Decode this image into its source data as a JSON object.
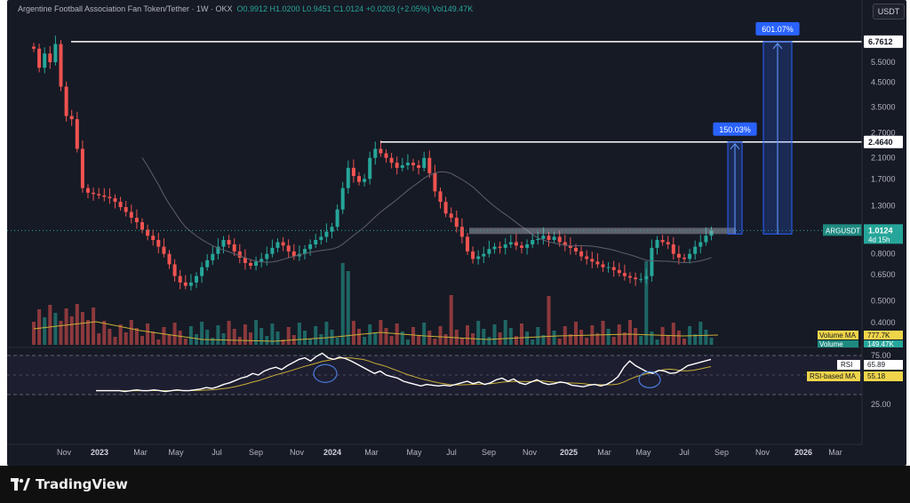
{
  "header": {
    "symbol": "Argentine Football Association Fan Token/Tether",
    "interval": "1W",
    "exchange": "OKX",
    "open": "O0.9912",
    "high": "H1.0200",
    "low": "L0.9451",
    "close": "C1.0124",
    "change": "+0.0203 (+2.05%)",
    "volume": "Vol149.47K"
  },
  "currency_button": "USDT",
  "footer": {
    "brand": "TradingView"
  },
  "chart_data": {
    "type": "candlestick",
    "scale": "log",
    "price_axis_ticks": [
      5.5,
      4.5,
      3.5,
      2.7,
      2.1,
      1.7,
      1.3,
      0.8,
      0.65,
      0.5,
      0.4
    ],
    "time_axis_labels": [
      "Nov",
      "2023",
      "Mar",
      "May",
      "Jul",
      "Sep",
      "Nov",
      "2024",
      "Mar",
      "May",
      "Jul",
      "Sep",
      "Nov",
      "2025",
      "Mar",
      "May",
      "Jul",
      "Sep",
      "Nov",
      "2026",
      "Mar"
    ],
    "price_labels": {
      "top_level": "6.7612",
      "mid_level": "2.4640",
      "last_symbol": "ARGUSDT",
      "last_price": "1.0124",
      "countdown": "4d 15h"
    },
    "target_labels": {
      "first": "150.03%",
      "second": "601.07%"
    },
    "volume": {
      "ma_label": "Volume MA",
      "ma_value": "777.7K",
      "label": "Volume",
      "value": "149.47K"
    },
    "rsi": {
      "levels": [
        "75.00",
        "25.00"
      ],
      "label": "RSI",
      "value": "65.89",
      "ma_label": "RSI-based MA",
      "ma_value": "55.18"
    },
    "closes": [
      6.3,
      5.2,
      6.0,
      5.5,
      6.6,
      4.3,
      3.2,
      3.1,
      2.3,
      1.55,
      1.48,
      1.46,
      1.44,
      1.42,
      1.4,
      1.35,
      1.28,
      1.22,
      1.15,
      1.1,
      1.02,
      0.96,
      0.92,
      0.86,
      0.8,
      0.72,
      0.64,
      0.6,
      0.58,
      0.6,
      0.64,
      0.7,
      0.75,
      0.8,
      0.86,
      0.92,
      0.88,
      0.82,
      0.77,
      0.73,
      0.71,
      0.74,
      0.76,
      0.8,
      0.85,
      0.9,
      0.87,
      0.82,
      0.78,
      0.8,
      0.84,
      0.88,
      0.92,
      0.95,
      1.0,
      1.05,
      1.25,
      1.55,
      1.9,
      1.75,
      1.65,
      1.7,
      2.1,
      2.3,
      2.2,
      2.1,
      2.0,
      1.9,
      1.95,
      2.0,
      1.95,
      1.9,
      2.1,
      1.8,
      1.5,
      1.35,
      1.2,
      1.15,
      1.05,
      0.95,
      0.82,
      0.76,
      0.78,
      0.8,
      0.84,
      0.86,
      0.85,
      0.88,
      0.9,
      0.87,
      0.85,
      0.88,
      0.92,
      0.93,
      0.96,
      0.92,
      0.95,
      0.9,
      0.87,
      0.85,
      0.82,
      0.78,
      0.76,
      0.74,
      0.72,
      0.7,
      0.7,
      0.68,
      0.66,
      0.64,
      0.63,
      0.62,
      0.62,
      0.64,
      0.85,
      0.92,
      0.9,
      0.88,
      0.8,
      0.77,
      0.76,
      0.8,
      0.86,
      0.9,
      0.96,
      1.0124
    ]
  }
}
